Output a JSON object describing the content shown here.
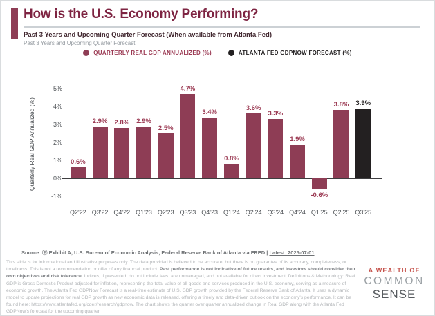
{
  "colors": {
    "accent": "#8E3D55",
    "title": "#7E2442",
    "forecast": "#232021",
    "gdp_label": "#9B3A53"
  },
  "header": {
    "title": "How is the U.S. Economy Performing?",
    "subtitle_bold": "Past 3 Years and Upcoming Quarter Forecast (When available from Atlanta Fed)",
    "subtitle_light": "Past 3 Years and Upcoming Quarter Forecast"
  },
  "legend": {
    "items": [
      {
        "label": "QUARTERLY REAL GDP ANNUALIZED (%)",
        "color": "#8E3D55",
        "text_color": "#9B3A53"
      },
      {
        "label": "ATLANTA FED GDPNOW FORECAST (%)",
        "color": "#232021",
        "text_color": "#232021"
      }
    ]
  },
  "chart_data": {
    "type": "bar",
    "title": "",
    "xlabel": "",
    "ylabel": "Quarterly Real GDP Annualized (%)",
    "ylim": [
      -1.5,
      5.5
    ],
    "grid": false,
    "legend_position": "top",
    "categories": [
      "Q2'22",
      "Q3'22",
      "Q4'22",
      "Q1'23",
      "Q2'23",
      "Q3'23",
      "Q4'23",
      "Q1'24",
      "Q2'24",
      "Q3'24",
      "Q4'24",
      "Q1'25",
      "Q2'25",
      "Q3'25"
    ],
    "series": [
      {
        "name": "Quarterly Real GDP Annualized (%)",
        "color": "#8E3D55",
        "label_color": "#9B3A53",
        "values": [
          0.6,
          2.9,
          2.8,
          2.9,
          2.5,
          4.7,
          3.4,
          0.8,
          3.6,
          3.3,
          1.9,
          -0.6,
          3.8,
          null
        ]
      },
      {
        "name": "Atlanta Fed GDPNow Forecast (%)",
        "color": "#232021",
        "label_color": "#1F1C1D",
        "values": [
          null,
          null,
          null,
          null,
          null,
          null,
          null,
          null,
          null,
          null,
          null,
          null,
          null,
          3.9
        ]
      }
    ],
    "bar_labels": [
      "0.6%",
      "2.9%",
      "2.8%",
      "2.9%",
      "2.5%",
      "4.7%",
      "3.4%",
      "0.8%",
      "3.6%",
      "3.3%",
      "1.9%",
      "-0.6%",
      "3.8%",
      "3.9%"
    ],
    "yticks": [
      {
        "value": 5,
        "label": "5%"
      },
      {
        "value": 4,
        "label": "4%"
      },
      {
        "value": 3,
        "label": "3%"
      },
      {
        "value": 2,
        "label": "2%"
      },
      {
        "value": 1,
        "label": "1%"
      },
      {
        "value": 0,
        "label": "0%"
      },
      {
        "value": -1,
        "label": "-1%"
      }
    ]
  },
  "source": {
    "text": "Source: Ⓔ Exhibit A, U.S. Bureau of Economic Analysis, Federal Reserve Bank of Atlanta via FRED | ",
    "link": "Latest: 2025-07-01"
  },
  "disclaimer": {
    "part1": "This slide is for informational and illustrative purposes only. The data provided is believed to be accurate, but there is no guarantee of its accuracy, completeness, or timeliness. This is not a recommendation or offer of any financial product. ",
    "bold": "Past performance is not indicative of future results, and investors should consider their own objectives and risk tolerance.",
    "part2": " Indices, if presented, do not include fees, are unmanaged, and not available for direct investment. Definitions & Methodology: Real GDP is Gross Domestic Product adjusted for inflation, representing the total value of all goods and services produced in the U.S. economy, serving as a measure of economic growth. The Atlanta Fed GDPNow Forecast is a real-time estimate of U.S. GDP growth provided by the Federal Reserve Bank of Atlanta. It uses a dynamic model to update projections for real GDP growth as new economic data is released, offering a timely and data-driven outlook on the economy's performance. It can be found here: https://www.atlantafed.org/cqer/research/gdpnow. The chart shows the quarter over quarter annualized change in Real GDP along with the Atlanta Fed GDPNow's forecast for the upcoming quarter."
  },
  "logo": {
    "line1": "A WEALTH OF",
    "line2": "COMMON",
    "line3": "SENSE"
  }
}
